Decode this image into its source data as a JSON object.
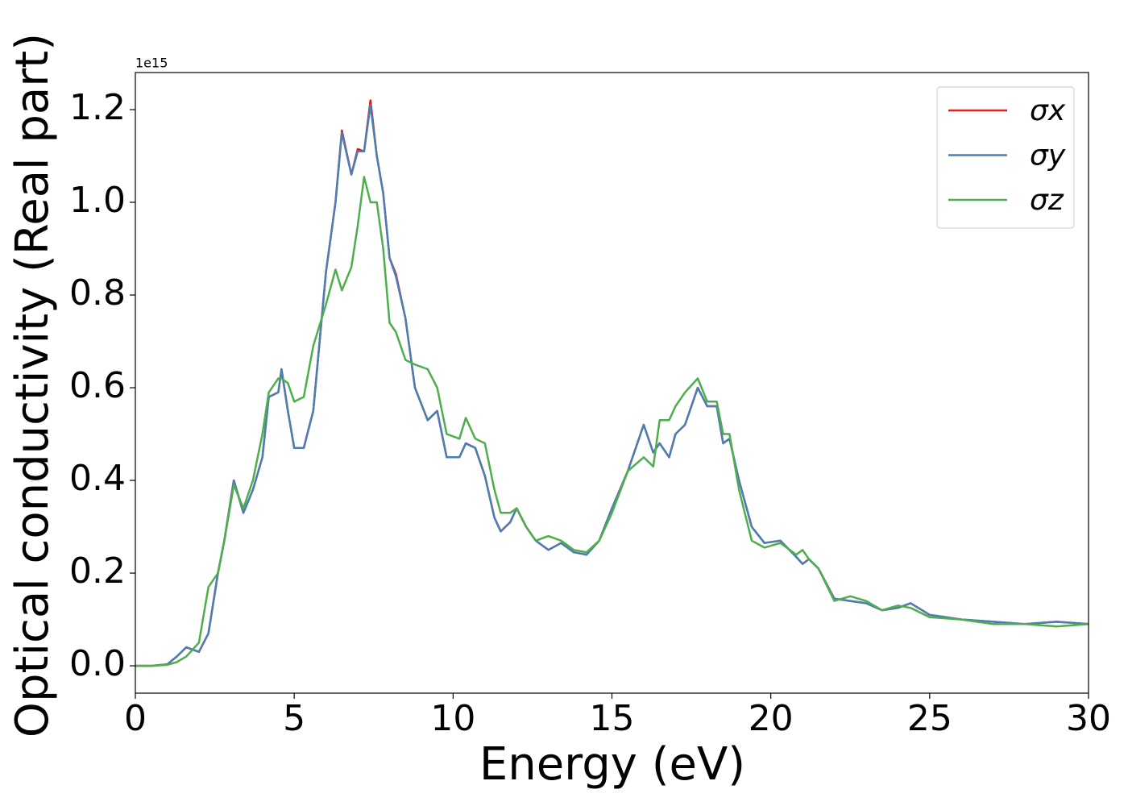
{
  "chart_data": {
    "type": "line",
    "y_offset_label": "1e15",
    "xlabel": "Energy (eV)",
    "ylabel": "Optical conductivity (Real part)",
    "xlim": [
      0,
      30
    ],
    "xticks": [
      0,
      5,
      10,
      15,
      20,
      25,
      30
    ],
    "ylim": [
      -0.059,
      1.28
    ],
    "yticks": [
      {
        "value": 0,
        "label": "0.0"
      },
      {
        "value": 0.2,
        "label": "0.2"
      },
      {
        "value": 0.4,
        "label": "0.4"
      },
      {
        "value": 0.6,
        "label": "0.6"
      },
      {
        "value": 0.8,
        "label": "0.8"
      },
      {
        "value": 1.0,
        "label": "1.0"
      },
      {
        "value": 1.2,
        "label": "1.2"
      }
    ],
    "legend": "upper right",
    "x": [
      0,
      0.5,
      1,
      1.3,
      1.6,
      2,
      2.3,
      2.6,
      2.8,
      3.1,
      3.4,
      3.7,
      4,
      4.2,
      4.5,
      4.6,
      4.8,
      5,
      5.3,
      5.6,
      6,
      6.3,
      6.5,
      6.8,
      7,
      7.2,
      7.4,
      7.6,
      7.8,
      8,
      8.2,
      8.5,
      8.8,
      9.2,
      9.5,
      9.8,
      10.2,
      10.4,
      10.7,
      11,
      11.3,
      11.5,
      11.8,
      12,
      12.3,
      12.6,
      13,
      13.4,
      13.8,
      14.2,
      14.6,
      15,
      15.5,
      16,
      16.3,
      16.5,
      16.8,
      17,
      17.3,
      17.7,
      18,
      18.3,
      18.5,
      18.7,
      19,
      19.4,
      19.8,
      20.3,
      20.8,
      21,
      21.2,
      21.5,
      22,
      22.5,
      23,
      23.5,
      24,
      24.4,
      25,
      26,
      27,
      28,
      29,
      30
    ],
    "series": [
      {
        "name": "σx",
        "color": "#e41a1c",
        "values": [
          0,
          0,
          0.003,
          0.02,
          0.04,
          0.03,
          0.07,
          0.2,
          0.27,
          0.4,
          0.33,
          0.38,
          0.45,
          0.58,
          0.59,
          0.64,
          0.55,
          0.47,
          0.47,
          0.55,
          0.85,
          1.0,
          1.155,
          1.06,
          1.115,
          1.11,
          1.22,
          1.1,
          1.02,
          0.88,
          0.845,
          0.75,
          0.6,
          0.53,
          0.55,
          0.45,
          0.45,
          0.48,
          0.47,
          0.41,
          0.32,
          0.29,
          0.31,
          0.34,
          0.3,
          0.27,
          0.25,
          0.265,
          0.245,
          0.24,
          0.27,
          0.34,
          0.42,
          0.52,
          0.46,
          0.48,
          0.45,
          0.5,
          0.52,
          0.6,
          0.56,
          0.56,
          0.48,
          0.49,
          0.4,
          0.3,
          0.265,
          0.27,
          0.235,
          0.22,
          0.23,
          0.21,
          0.145,
          0.14,
          0.135,
          0.12,
          0.125,
          0.135,
          0.11,
          0.1,
          0.095,
          0.09,
          0.095,
          0.09
        ]
      },
      {
        "name": "σy",
        "color": "#4a7fb5",
        "values": [
          0,
          0,
          0.003,
          0.02,
          0.04,
          0.03,
          0.07,
          0.2,
          0.27,
          0.4,
          0.33,
          0.38,
          0.45,
          0.58,
          0.59,
          0.64,
          0.55,
          0.47,
          0.47,
          0.55,
          0.85,
          1.0,
          1.15,
          1.06,
          1.11,
          1.11,
          1.21,
          1.1,
          1.02,
          0.88,
          0.84,
          0.75,
          0.6,
          0.53,
          0.55,
          0.45,
          0.45,
          0.48,
          0.47,
          0.41,
          0.32,
          0.29,
          0.31,
          0.34,
          0.3,
          0.27,
          0.25,
          0.265,
          0.245,
          0.24,
          0.27,
          0.34,
          0.42,
          0.52,
          0.46,
          0.48,
          0.45,
          0.5,
          0.52,
          0.6,
          0.56,
          0.56,
          0.48,
          0.49,
          0.4,
          0.3,
          0.265,
          0.27,
          0.235,
          0.22,
          0.23,
          0.21,
          0.145,
          0.14,
          0.135,
          0.12,
          0.125,
          0.135,
          0.11,
          0.1,
          0.095,
          0.09,
          0.095,
          0.09
        ]
      },
      {
        "name": "σz",
        "color": "#4daf4a",
        "values": [
          0,
          0,
          0.002,
          0.008,
          0.02,
          0.05,
          0.17,
          0.2,
          0.27,
          0.39,
          0.34,
          0.4,
          0.5,
          0.59,
          0.62,
          0.62,
          0.61,
          0.57,
          0.58,
          0.69,
          0.78,
          0.855,
          0.81,
          0.86,
          0.95,
          1.055,
          1.0,
          1.0,
          0.9,
          0.74,
          0.72,
          0.66,
          0.65,
          0.64,
          0.6,
          0.5,
          0.49,
          0.535,
          0.49,
          0.48,
          0.38,
          0.33,
          0.33,
          0.34,
          0.3,
          0.27,
          0.28,
          0.27,
          0.25,
          0.245,
          0.27,
          0.33,
          0.42,
          0.45,
          0.43,
          0.53,
          0.53,
          0.56,
          0.59,
          0.62,
          0.57,
          0.57,
          0.5,
          0.5,
          0.38,
          0.27,
          0.255,
          0.265,
          0.24,
          0.25,
          0.23,
          0.21,
          0.14,
          0.15,
          0.14,
          0.12,
          0.13,
          0.125,
          0.105,
          0.1,
          0.09,
          0.09,
          0.085,
          0.09
        ]
      }
    ]
  }
}
